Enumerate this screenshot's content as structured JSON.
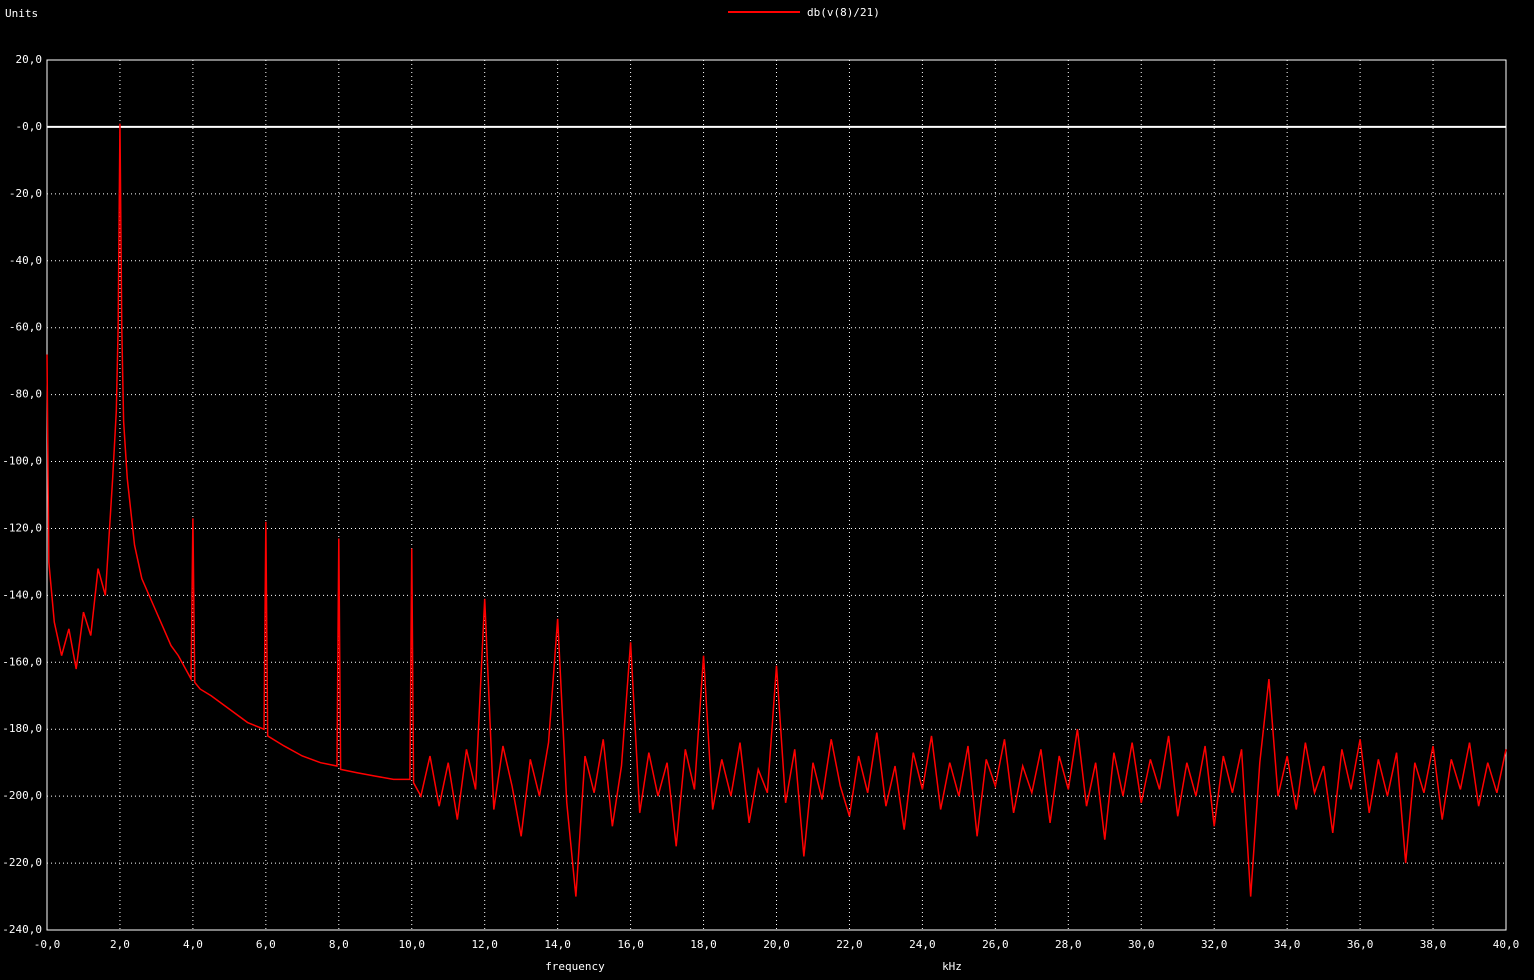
{
  "chart_data": {
    "type": "line",
    "ylabel": "Units",
    "xlabel": "frequency",
    "xunit": "kHz",
    "grid": true,
    "xlim": [
      0,
      40
    ],
    "ylim": [
      -240,
      20
    ],
    "xticks": [
      {
        "value": 0,
        "label": "-0,0"
      },
      {
        "value": 2,
        "label": "2,0"
      },
      {
        "value": 4,
        "label": "4,0"
      },
      {
        "value": 6,
        "label": "6,0"
      },
      {
        "value": 8,
        "label": "8,0"
      },
      {
        "value": 10,
        "label": "10,0"
      },
      {
        "value": 12,
        "label": "12,0"
      },
      {
        "value": 14,
        "label": "14,0"
      },
      {
        "value": 16,
        "label": "16,0"
      },
      {
        "value": 18,
        "label": "18,0"
      },
      {
        "value": 20,
        "label": "20,0"
      },
      {
        "value": 22,
        "label": "22,0"
      },
      {
        "value": 24,
        "label": "24,0"
      },
      {
        "value": 26,
        "label": "26,0"
      },
      {
        "value": 28,
        "label": "28,0"
      },
      {
        "value": 30,
        "label": "30,0"
      },
      {
        "value": 32,
        "label": "32,0"
      },
      {
        "value": 34,
        "label": "34,0"
      },
      {
        "value": 36,
        "label": "36,0"
      },
      {
        "value": 38,
        "label": "38,0"
      },
      {
        "value": 40,
        "label": "40,0"
      }
    ],
    "yticks": [
      {
        "value": 20,
        "label": "20,0"
      },
      {
        "value": 0,
        "label": "-0,0"
      },
      {
        "value": -20,
        "label": "-20,0"
      },
      {
        "value": -40,
        "label": "-40,0"
      },
      {
        "value": -60,
        "label": "-60,0"
      },
      {
        "value": -80,
        "label": "-80,0"
      },
      {
        "value": -100,
        "label": "-100,0"
      },
      {
        "value": -120,
        "label": "-120,0"
      },
      {
        "value": -140,
        "label": "-140,0"
      },
      {
        "value": -160,
        "label": "-160,0"
      },
      {
        "value": -180,
        "label": "-180,0"
      },
      {
        "value": -200,
        "label": "-200,0"
      },
      {
        "value": -220,
        "label": "-220,0"
      },
      {
        "value": -240,
        "label": "-240,0"
      }
    ],
    "x": [
      0,
      0.05,
      0.2,
      0.4,
      0.6,
      0.8,
      1.0,
      1.2,
      1.4,
      1.6,
      1.8,
      1.9,
      1.95,
      2.0,
      2.05,
      2.1,
      2.2,
      2.4,
      2.6,
      2.8,
      3.0,
      3.2,
      3.4,
      3.6,
      3.8,
      3.95,
      4.0,
      4.05,
      4.2,
      4.5,
      5.0,
      5.5,
      5.95,
      6.0,
      6.05,
      6.5,
      7.0,
      7.5,
      7.95,
      8.0,
      8.05,
      8.5,
      9.0,
      9.5,
      9.95,
      10.0,
      10.05,
      10.25,
      10.5,
      10.75,
      11.0,
      11.25,
      11.5,
      11.75,
      12.0,
      12.25,
      12.5,
      12.75,
      13.0,
      13.25,
      13.5,
      13.75,
      14.0,
      14.25,
      14.5,
      14.75,
      15.0,
      15.25,
      15.5,
      15.75,
      16.0,
      16.25,
      16.5,
      16.75,
      17.0,
      17.25,
      17.5,
      17.75,
      18.0,
      18.25,
      18.5,
      18.75,
      19.0,
      19.25,
      19.5,
      19.75,
      20.0,
      20.25,
      20.5,
      20.75,
      21.0,
      21.25,
      21.5,
      21.75,
      22.0,
      22.25,
      22.5,
      22.75,
      23.0,
      23.25,
      23.5,
      23.75,
      24.0,
      24.25,
      24.5,
      24.75,
      25.0,
      25.25,
      25.5,
      25.75,
      26.0,
      26.25,
      26.5,
      26.75,
      27.0,
      27.25,
      27.5,
      27.75,
      28.0,
      28.25,
      28.5,
      28.75,
      29.0,
      29.25,
      29.5,
      29.75,
      30.0,
      30.25,
      30.5,
      30.75,
      31.0,
      31.25,
      31.5,
      31.75,
      32.0,
      32.25,
      32.5,
      32.75,
      33.0,
      33.25,
      33.5,
      33.75,
      34.0,
      34.25,
      34.5,
      34.75,
      35.0,
      35.25,
      35.5,
      35.75,
      36.0,
      36.25,
      36.5,
      36.75,
      37.0,
      37.25,
      37.5,
      37.75,
      38.0,
      38.25,
      38.5,
      38.75,
      39.0,
      39.25,
      39.5,
      39.75,
      40.0
    ],
    "series": [
      {
        "name": "db(v(8)/21)",
        "color": "#ff0000",
        "values": [
          -68,
          -130,
          -148,
          -158,
          -150,
          -162,
          -145,
          -152,
          -132,
          -140,
          -105,
          -85,
          -60,
          1,
          -60,
          -88,
          -105,
          -125,
          -135,
          -140,
          -145,
          -150,
          -155,
          -158,
          -162,
          -165,
          -117,
          -166,
          -168,
          -170,
          -174,
          -178,
          -180,
          -118,
          -182,
          -185,
          -188,
          -190,
          -191,
          -123,
          -192,
          -193,
          -194,
          -195,
          -195,
          -126,
          -196,
          -200,
          -188,
          -203,
          -190,
          -207,
          -186,
          -198,
          -141,
          -204,
          -185,
          -197,
          -212,
          -189,
          -200,
          -184,
          -147,
          -202,
          -230,
          -188,
          -199,
          -183,
          -209,
          -191,
          -154,
          -205,
          -187,
          -200,
          -190,
          -215,
          -186,
          -198,
          -158,
          -204,
          -189,
          -200,
          -184,
          -208,
          -192,
          -199,
          -161,
          -202,
          -186,
          -218,
          -190,
          -201,
          -183,
          -197,
          -206,
          -188,
          -199,
          -181,
          -203,
          -191,
          -210,
          -187,
          -198,
          -182,
          -204,
          -190,
          -200,
          -185,
          -212,
          -189,
          -197,
          -183,
          -205,
          -191,
          -199,
          -186,
          -208,
          -188,
          -198,
          -180,
          -203,
          -190,
          -213,
          -187,
          -200,
          -184,
          -202,
          -189,
          -198,
          -182,
          -206,
          -190,
          -200,
          -185,
          -209,
          -188,
          -199,
          -186,
          -230,
          -190,
          -165,
          -200,
          -188,
          -204,
          -184,
          -199,
          -191,
          -211,
          -186,
          -198,
          -183,
          -205,
          -189,
          -200,
          -187,
          -220,
          -190,
          -199,
          -185,
          -207,
          -189,
          -198,
          -184,
          -203,
          -190,
          -199,
          -186
        ]
      }
    ]
  }
}
